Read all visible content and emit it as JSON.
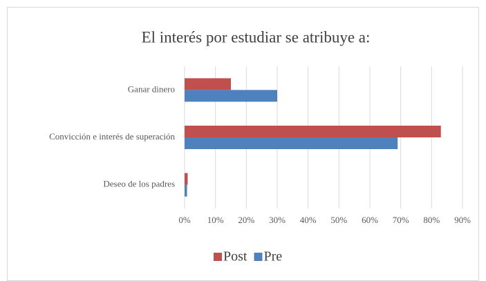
{
  "chart_data": {
    "type": "hbar",
    "title": "El interés por estudiar se atribuye a:",
    "categories": [
      "Ganar dinero",
      "Convicción e interés de superación",
      "Deseo de los padres"
    ],
    "series": [
      {
        "name": "Post",
        "color": "#c0504d",
        "values": [
          15,
          83,
          1
        ]
      },
      {
        "name": "Pre",
        "color": "#4f81bd",
        "values": [
          30,
          69,
          0.8
        ]
      }
    ],
    "xlim": [
      0,
      90
    ],
    "xticks": [
      {
        "value": 0,
        "label": "0%"
      },
      {
        "value": 10,
        "label": "10%"
      },
      {
        "value": 20,
        "label": "20%"
      },
      {
        "value": 30,
        "label": "30%"
      },
      {
        "value": 40,
        "label": "40%"
      },
      {
        "value": 50,
        "label": "50%"
      },
      {
        "value": 60,
        "label": "60%"
      },
      {
        "value": 70,
        "label": "70%"
      },
      {
        "value": 80,
        "label": "80%"
      },
      {
        "value": 90,
        "label": "90%"
      }
    ],
    "grid": true,
    "legend": "bottom"
  }
}
